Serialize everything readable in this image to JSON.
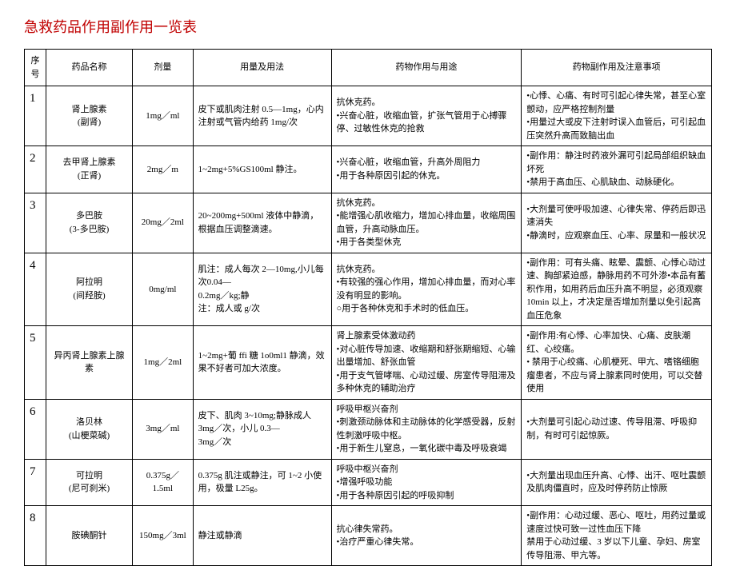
{
  "title": "急救药品作用副作用一览表",
  "headers": {
    "seq": "序号",
    "name": "药品名称",
    "dose": "剂量",
    "usage": "用量及用法",
    "effect": "药物作用与用途",
    "side": "药物副作用及注意事项"
  },
  "rows": [
    {
      "seq": "1",
      "name": "肾上腺素\n(副肾)",
      "dose": "1mg／ml",
      "usage": "皮下或肌肉注射 0.5—1mg，心内注射或气管内给药 1mg/次",
      "effect": "抗休克药。\n•兴奋心脏，收缩血管，扩张气管用于心搏骤停、过敏性休克的抢救",
      "side": "•心悸、心痛、有时可引起心律失常，甚至心室颤动，应严格控制剂量\n•用量过大或皮下注射时误入血管后，可引起血压突然升高而致脑出血"
    },
    {
      "seq": "2",
      "name": "去甲肾上腺素\n(正肾)",
      "dose": "2mg／m",
      "usage": "1~2mg+5%GS100ml 静注。",
      "effect": "•兴奋心脏，收缩血管，升高外周阻力\n•用于各种原因引起的休克。",
      "side": "•副作用：静注时药液外漏可引起局部组织缺血坏死\n•禁用于高血压、心肌缺血、动脉硬化。"
    },
    {
      "seq": "3",
      "name": "多巴胺\n(3-多巴胺)",
      "dose": "20mg／2ml",
      "usage": "20~200mg+500ml 液体中静滴，根据血压调整滴速。",
      "effect": "抗休克药。\n•能增强心肌收缩力，增加心排血量，收缩周围血管，升高动脉血压。\n•用于各类型休克",
      "side": "•大剂量可使呼吸加速、心律失常、停药后即迅速消失\n•静滴时，应观察血压、心率、尿量和一般状况"
    },
    {
      "seq": "4",
      "name": "阿拉明\n(间羟胺)",
      "dose": "0mg/ml",
      "usage": "肌注：成人每次 2—10mg,小儿每次0.04—\n0.2mg／kg;静\n注：成人或 g/次",
      "effect": "抗休克药。\n•有较强的强心作用，增加心排血量，而对心率没有明显的影响。\n○用于各种休克和手术时的低血压。",
      "side": "•副作用：可有头痛、眩晕、震颤、心悸心动过速、胸部紧迫感，静脉用药不可外渗•本品有蓄积作用，如用药后血压升高不明显，必须观察10min 以上，才决定是否增加剂量以免引起高血压危象"
    },
    {
      "seq": "5",
      "name": "异丙肾上腺素上腺素",
      "dose": "1mg／2ml",
      "usage": "1~2mg+葡 ffi 糖 1o0ml1 静滴，效果不好者可加大浓度。",
      "effect": "肾上腺素受体激动药\n•对心脏传导加速、收缩期和舒张期缩短、心输出量增加、舒张血管\n•用于支气管哮喘、心动过缓、房室传导阻滞及多种休克的辅助治疗",
      "side": "•副作用:有心悸、心率加快、心痛、皮肤潮红、心绞痛。\n• 禁用于心绞痛、心肌梗死、甲亢、嗜铬细胞瘤患者，不应与肾上腺素同时使用，可以交替使用"
    },
    {
      "seq": "6",
      "name": "洛贝林\n(山梗菜碱)",
      "dose": "3mg／ml",
      "usage": "皮下、肌肉 3~10mg;静脉成人3mg／次，小儿 0.3—\n3mg／次",
      "effect": "呼吸甲枢兴奋剂\n•刺激颈动脉体和主动脉体的化学感受器，反射性刺激呼吸中枢。\n•用于新生儿窒息，一氧化碳中毒及呼吸衰竭",
      "side": "•大剂量可引起心动过速、传导阻滞、呼吸抑制，有时可引起惊厥。"
    },
    {
      "seq": "7",
      "name": "可拉明\n(尼可刹米)",
      "dose": "0.375g／1.5ml",
      "usage": "0.375g 肌注或静注，可 1~2 小使用，极量 L25g。",
      "effect": "呼吸中枢兴奋剂\n•增强呼吸功能\n•用于各种原因引起的呼吸抑制",
      "side": "•大剂量出现血压升高、心悸、出汗、呕吐震颤及肌肉僵直时，应及时停药防止惊厥"
    },
    {
      "seq": "8",
      "name": "胺碘酮针",
      "dose": "150mg／3ml",
      "usage": "静注或静滴",
      "effect": "抗心律失常药。\n•治疗严重心律失常。",
      "side": "•副作用：心动过缓、恶心、呕吐，用药过量或速度过快可致一过性血压下降\n 禁用于心动过缓、3 岁以下儿童、孕妇、房室传导阻滞、甲亢等。"
    }
  ]
}
